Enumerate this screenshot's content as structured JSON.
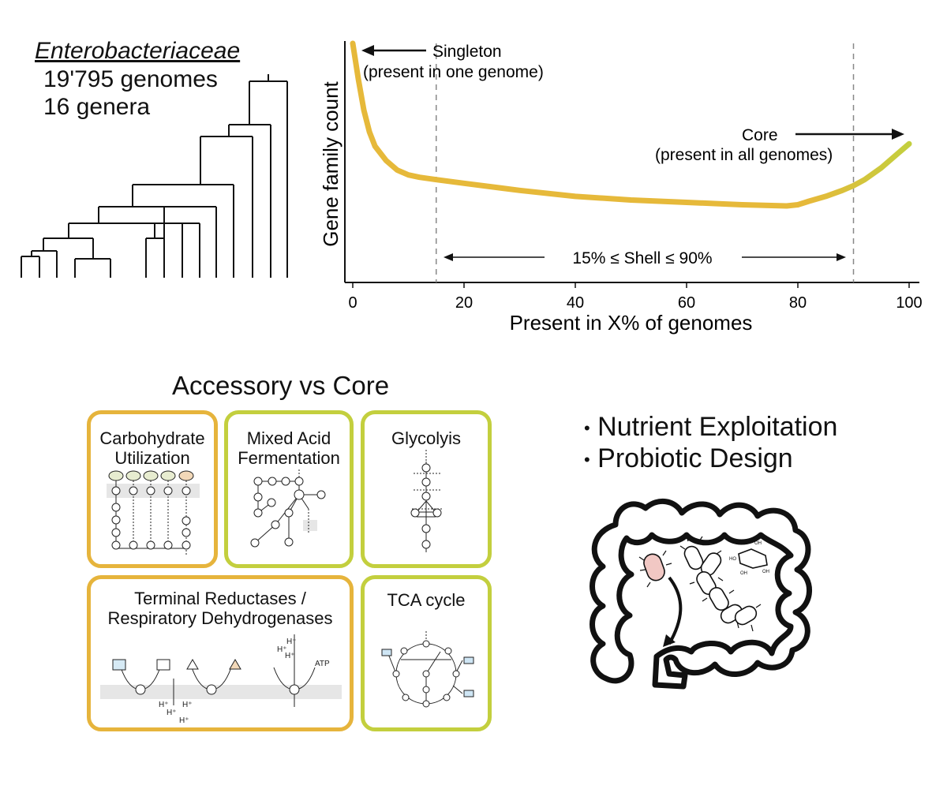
{
  "tree_panel": {
    "family": "Enterobacteriaceae",
    "genomes": "19'795 genomes",
    "genera": "16 genera"
  },
  "chart_data": {
    "type": "line",
    "xlabel": "Present in X% of genomes",
    "ylabel": "Gene family count",
    "xlim": [
      0,
      100
    ],
    "xticks": [
      "0",
      "20",
      "40",
      "60",
      "80",
      "100"
    ],
    "x": [
      0,
      1,
      2,
      3,
      4,
      6,
      8,
      10,
      12,
      15,
      20,
      30,
      40,
      50,
      60,
      70,
      78,
      80,
      82,
      85,
      88,
      90,
      92,
      95,
      98,
      100
    ],
    "y": [
      100,
      85,
      72,
      63,
      57,
      51,
      47,
      45,
      44,
      43,
      41.5,
      38.5,
      36,
      34.5,
      33.5,
      32.5,
      32,
      32.5,
      34,
      36,
      38.5,
      40.5,
      43,
      48,
      54,
      58
    ],
    "series_color": "#e6b93a",
    "core_color": "#c3cf3e",
    "grid": false,
    "annotations": {
      "singleton": "Singleton",
      "singleton_sub": "(present in one genome)",
      "core": "Core",
      "core_sub": "(present in all genomes)",
      "shell": "15% ≤ Shell ≤ 90%"
    },
    "dashed_lines_x": [
      15,
      90
    ]
  },
  "section_title": "Accessory vs Core",
  "boxes": {
    "carbohydrate": "Carbohydrate Utilization",
    "carbohydrate_l1": "Carbohydrate",
    "carbohydrate_l2": "Utilization",
    "mixed_l1": "Mixed Acid",
    "mixed_l2": "Fermentation",
    "glycolysis": "Glycolyis",
    "terminal_l1": "Terminal Reductases /",
    "terminal_l2": "Respiratory Dehydrogenases",
    "tca": "TCA cycle",
    "atp": "ATP",
    "hplus": "H⁺"
  },
  "bullets": [
    "Nutrient Exploitation",
    "Probiotic Design"
  ],
  "colors": {
    "accessory": "#e6b43c",
    "core": "#c3cf3e",
    "bacteria_pink": "#f1c8c4"
  }
}
